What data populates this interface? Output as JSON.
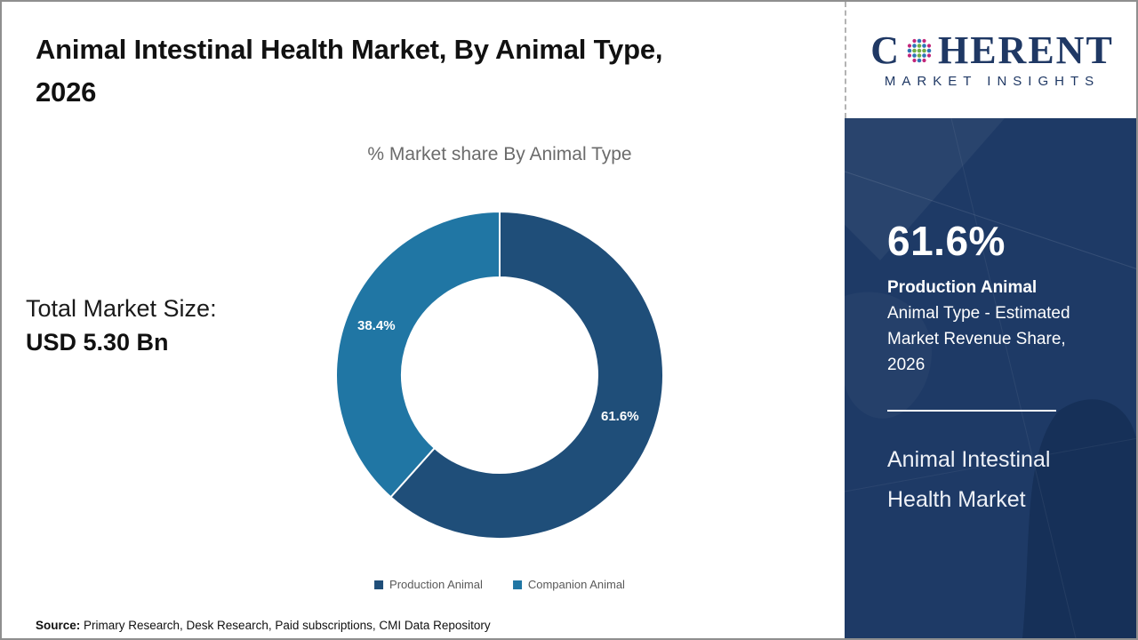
{
  "page": {
    "title_line1": "Animal Intestinal Health Market, By Animal Type,",
    "title_line2": "2026",
    "subtitle": "% Market share By Animal Type",
    "source_label": "Source:",
    "source_text": " Primary Research, Desk Research, Paid subscriptions, CMI Data Repository"
  },
  "left": {
    "market_size_label": "Total Market Size:",
    "market_size_value": "USD 5.30 Bn"
  },
  "chart_data": {
    "type": "pie",
    "donut": true,
    "title": "% Market share By Animal Type",
    "categories": [
      "Production Animal",
      "Companion Animal"
    ],
    "values": [
      61.6,
      38.4
    ],
    "labels": [
      "61.6%",
      "38.4%"
    ],
    "colors": [
      "#1f4e79",
      "#2076a4"
    ],
    "start_angle_deg": 0,
    "direction": "clockwise",
    "legend_position": "bottom"
  },
  "logo": {
    "brand_prefix": "C",
    "brand_suffix": "HERENT",
    "tagline": "MARKET INSIGHTS",
    "brand_color": "#1f3864",
    "globe_colors": {
      "outer": "#c2267a",
      "middle": "#2e75b6",
      "inner": "#70ad47"
    }
  },
  "panel": {
    "bg_color": "#1e3a66",
    "stat_value": "61.6%",
    "stat_title": "Production Animal",
    "stat_desc": "Animal Type - Estimated Market Revenue Share, 2026",
    "market_name": "Animal Intestinal Health Market"
  }
}
